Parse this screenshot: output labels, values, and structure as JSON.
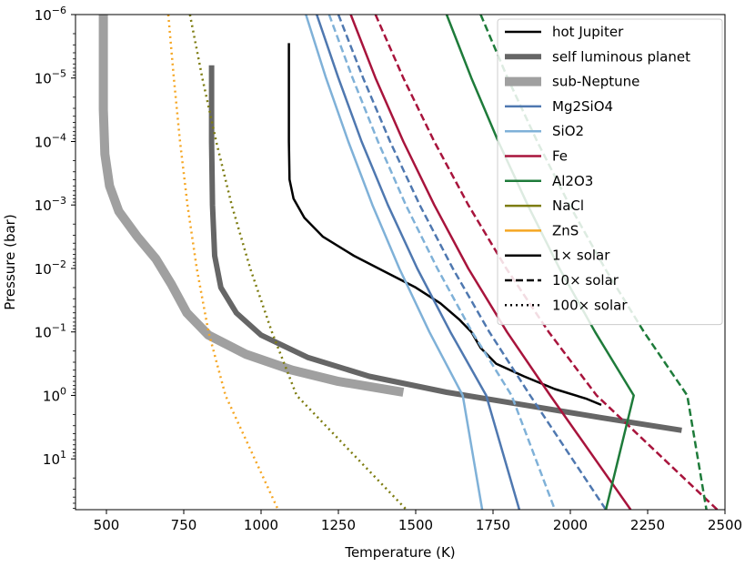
{
  "chart_data": {
    "type": "line",
    "xlabel": "Temperature (K)",
    "ylabel": "Pressure (bar)",
    "xlim": [
      400,
      2500
    ],
    "ylim_log10": [
      1.8,
      -6
    ],
    "y_scale": "log",
    "y_inverted": true,
    "grid": false,
    "legend_position": "top-right",
    "x_ticks": [
      {
        "value": 500,
        "label": "500"
      },
      {
        "value": 750,
        "label": "750"
      },
      {
        "value": 1000,
        "label": "1000"
      },
      {
        "value": 1250,
        "label": "1250"
      },
      {
        "value": 1500,
        "label": "1500"
      },
      {
        "value": 1750,
        "label": "1750"
      },
      {
        "value": 2000,
        "label": "2000"
      },
      {
        "value": 2250,
        "label": "2250"
      },
      {
        "value": 2500,
        "label": "2500"
      }
    ],
    "y_ticks": [
      {
        "log10": -6,
        "base": "10",
        "exp": "−6"
      },
      {
        "log10": -5,
        "base": "10",
        "exp": "−5"
      },
      {
        "log10": -4,
        "base": "10",
        "exp": "−4"
      },
      {
        "log10": -3,
        "base": "10",
        "exp": "−3"
      },
      {
        "log10": -2,
        "base": "10",
        "exp": "−2"
      },
      {
        "log10": -1,
        "base": "10",
        "exp": "−1"
      },
      {
        "log10": 0,
        "base": "10",
        "exp": "0"
      },
      {
        "log10": 1,
        "base": "10",
        "exp": "1"
      }
    ],
    "series": [
      {
        "name": "hot Jupiter",
        "color": "#000000",
        "style": "solid",
        "weight": "thin",
        "xlog": [
          [
            1090,
            -5.55
          ],
          [
            1090,
            -4
          ],
          [
            1092,
            -3.4
          ],
          [
            1105,
            -3.1
          ],
          [
            1140,
            -2.8
          ],
          [
            1200,
            -2.5
          ],
          [
            1300,
            -2.2
          ],
          [
            1400,
            -1.95
          ],
          [
            1500,
            -1.7
          ],
          [
            1580,
            -1.45
          ],
          [
            1640,
            -1.2
          ],
          [
            1680,
            -1.0
          ],
          [
            1710,
            -0.75
          ],
          [
            1760,
            -0.5
          ],
          [
            1850,
            -0.3
          ],
          [
            1950,
            -0.1
          ],
          [
            2050,
            0.05
          ],
          [
            2100,
            0.15
          ]
        ]
      },
      {
        "name": "self luminous planet",
        "color": "#666666",
        "style": "solid",
        "weight": "medium",
        "xlog": [
          [
            840,
            -5.2
          ],
          [
            840,
            -4
          ],
          [
            843,
            -3
          ],
          [
            850,
            -2.2
          ],
          [
            870,
            -1.7
          ],
          [
            920,
            -1.3
          ],
          [
            1000,
            -0.95
          ],
          [
            1150,
            -0.6
          ],
          [
            1350,
            -0.3
          ],
          [
            1600,
            -0.05
          ],
          [
            1850,
            0.15
          ],
          [
            2100,
            0.35
          ],
          [
            2360,
            0.55
          ]
        ]
      },
      {
        "name": "sub-Neptune",
        "color": "#a0a0a0",
        "style": "solid",
        "weight": "thick",
        "xlog": [
          [
            490,
            -6
          ],
          [
            490,
            -4.5
          ],
          [
            495,
            -3.8
          ],
          [
            510,
            -3.3
          ],
          [
            540,
            -2.9
          ],
          [
            600,
            -2.5
          ],
          [
            660,
            -2.15
          ],
          [
            710,
            -1.75
          ],
          [
            760,
            -1.3
          ],
          [
            830,
            -0.95
          ],
          [
            950,
            -0.65
          ],
          [
            1100,
            -0.4
          ],
          [
            1250,
            -0.22
          ],
          [
            1460,
            -0.05
          ]
        ]
      },
      {
        "name": "Mg2SiO4 1× solar",
        "color": "#4f78b0",
        "style": "solid",
        "weight": "thin",
        "xlog": [
          [
            1180,
            -6
          ],
          [
            1250,
            -5
          ],
          [
            1325,
            -4
          ],
          [
            1410,
            -3
          ],
          [
            1505,
            -2
          ],
          [
            1612,
            -1
          ],
          [
            1728,
            0
          ],
          [
            1835,
            1.8
          ]
        ]
      },
      {
        "name": "Mg2SiO4 10× solar",
        "color": "#4f78b0",
        "style": "dashed",
        "weight": "thin",
        "xlog": [
          [
            1250,
            -6
          ],
          [
            1330,
            -5
          ],
          [
            1417,
            -4
          ],
          [
            1513,
            -3
          ],
          [
            1620,
            -2
          ],
          [
            1738,
            -1
          ],
          [
            1870,
            0
          ],
          [
            2115,
            1.8
          ]
        ]
      },
      {
        "name": "SiO2 1× solar",
        "color": "#7fb1d8",
        "style": "solid",
        "weight": "thin",
        "xlog": [
          [
            1145,
            -6
          ],
          [
            1210,
            -5
          ],
          [
            1282,
            -4
          ],
          [
            1360,
            -3
          ],
          [
            1447,
            -2
          ],
          [
            1544,
            -1
          ],
          [
            1652,
            0
          ],
          [
            1715,
            1.8
          ]
        ]
      },
      {
        "name": "SiO2 10× solar",
        "color": "#7fb1d8",
        "style": "dashed",
        "weight": "thin",
        "xlog": [
          [
            1220,
            -6
          ],
          [
            1296,
            -5
          ],
          [
            1378,
            -4
          ],
          [
            1468,
            -3
          ],
          [
            1570,
            -2
          ],
          [
            1682,
            -1
          ],
          [
            1810,
            0
          ],
          [
            1950,
            1.8
          ]
        ]
      },
      {
        "name": "Fe 1× solar",
        "color": "#a8143c",
        "style": "solid",
        "weight": "thin",
        "xlog": [
          [
            1290,
            -6
          ],
          [
            1370,
            -5
          ],
          [
            1460,
            -4
          ],
          [
            1560,
            -3
          ],
          [
            1670,
            -2
          ],
          [
            1795,
            -1
          ],
          [
            1935,
            0
          ],
          [
            2195,
            1.8
          ]
        ]
      },
      {
        "name": "Fe 10× solar",
        "color": "#a8143c",
        "style": "dashed",
        "weight": "thin",
        "xlog": [
          [
            1370,
            -6
          ],
          [
            1460,
            -5
          ],
          [
            1560,
            -4
          ],
          [
            1670,
            -3
          ],
          [
            1793,
            -2
          ],
          [
            1930,
            -1
          ],
          [
            2085,
            0
          ],
          [
            2475,
            1.8
          ]
        ]
      },
      {
        "name": "Al2O3 1× solar",
        "color": "#1e7b3a",
        "style": "solid",
        "weight": "thin",
        "xlog": [
          [
            1600,
            -6
          ],
          [
            1680,
            -5
          ],
          [
            1767,
            -4
          ],
          [
            1862,
            -3
          ],
          [
            1965,
            -2
          ],
          [
            2080,
            -1
          ],
          [
            2205,
            0
          ],
          [
            2115,
            1.8
          ]
        ]
      },
      {
        "name": "Al2O3 10× solar",
        "color": "#1e7b3a",
        "style": "dashed",
        "weight": "thin",
        "xlog": [
          [
            1710,
            -6
          ],
          [
            1797,
            -5
          ],
          [
            1893,
            -4
          ],
          [
            1997,
            -3
          ],
          [
            2112,
            -2
          ],
          [
            2238,
            -1
          ],
          [
            2378,
            0
          ],
          [
            2440,
            1.8
          ]
        ]
      },
      {
        "name": "NaCl 100× solar",
        "color": "#7d7c10",
        "style": "dotted",
        "weight": "thin",
        "xlog": [
          [
            770,
            -6
          ],
          [
            810,
            -5
          ],
          [
            855,
            -4
          ],
          [
            905,
            -3
          ],
          [
            965,
            -2
          ],
          [
            1035,
            -1
          ],
          [
            1115,
            0
          ],
          [
            1470,
            1.8
          ]
        ]
      },
      {
        "name": "ZnS 100× solar",
        "color": "#f5a623",
        "style": "dotted",
        "weight": "thin",
        "xlog": [
          [
            700,
            -6
          ],
          [
            718,
            -5
          ],
          [
            738,
            -4
          ],
          [
            762,
            -3
          ],
          [
            792,
            -2
          ],
          [
            830,
            -1
          ],
          [
            885,
            0
          ],
          [
            1055,
            1.8
          ]
        ]
      }
    ],
    "legend": [
      {
        "label": "hot Jupiter",
        "color": "#000000",
        "style": "solid",
        "weight": "thin"
      },
      {
        "label": "self luminous planet",
        "color": "#666666",
        "style": "solid",
        "weight": "medium"
      },
      {
        "label": "sub-Neptune",
        "color": "#a0a0a0",
        "style": "solid",
        "weight": "thick"
      },
      {
        "label": "Mg2SiO4",
        "color": "#4f78b0",
        "style": "solid",
        "weight": "thin"
      },
      {
        "label": "SiO2",
        "color": "#7fb1d8",
        "style": "solid",
        "weight": "thin"
      },
      {
        "label": "Fe",
        "color": "#a8143c",
        "style": "solid",
        "weight": "thin"
      },
      {
        "label": "Al2O3",
        "color": "#1e7b3a",
        "style": "solid",
        "weight": "thin"
      },
      {
        "label": "NaCl",
        "color": "#7d7c10",
        "style": "solid",
        "weight": "thin"
      },
      {
        "label": "ZnS",
        "color": "#f5a623",
        "style": "solid",
        "weight": "thin"
      },
      {
        "label": "1× solar",
        "color": "#000000",
        "style": "solid",
        "weight": "thin"
      },
      {
        "label": "10× solar",
        "color": "#000000",
        "style": "dashed",
        "weight": "thin"
      },
      {
        "label": "100× solar",
        "color": "#000000",
        "style": "dotted",
        "weight": "thin"
      }
    ]
  }
}
